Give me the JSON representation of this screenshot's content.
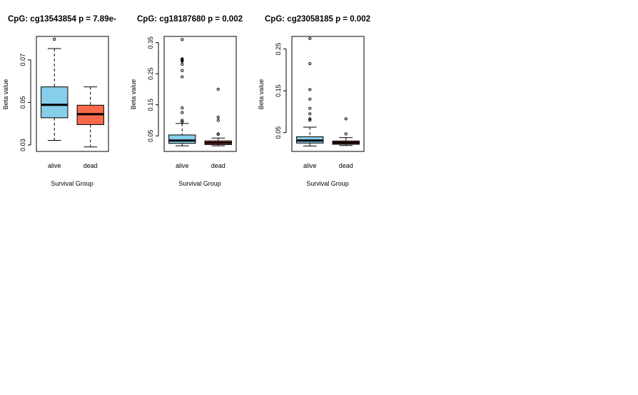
{
  "chart_data": [
    {
      "type": "boxplot",
      "title": "CpG: cg13543854 p = 7.89e-",
      "xlabel": "Survival Group",
      "ylabel": "Beta value",
      "categories": [
        "alive",
        "dead"
      ],
      "ylim": [
        0.027,
        0.081
      ],
      "yticks": [
        0.03,
        0.05,
        0.07
      ],
      "ytick_labels": [
        "0.03",
        "0.05",
        "0.07"
      ],
      "boxes": [
        {
          "name": "alive",
          "color": "#87ceeb",
          "whisker_low": 0.0322,
          "q1": 0.0428,
          "median": 0.0489,
          "q3": 0.0573,
          "whisker_high": 0.0753,
          "outliers": [
            0.0797
          ]
        },
        {
          "name": "dead",
          "color": "#fa6a4a",
          "whisker_low": 0.0291,
          "q1": 0.0396,
          "median": 0.0445,
          "q3": 0.0487,
          "whisker_high": 0.0573,
          "outliers": []
        }
      ]
    },
    {
      "type": "boxplot",
      "title": "CpG: cg18187680 p = 0.002",
      "xlabel": "Survival Group",
      "ylabel": "Beta value",
      "categories": [
        "alive",
        "dead"
      ],
      "ylim": [
        0.0,
        0.37
      ],
      "yticks": [
        0.05,
        0.15,
        0.25,
        0.35
      ],
      "ytick_labels": [
        "0.05",
        "0.15",
        "0.25",
        "0.35"
      ],
      "boxes": [
        {
          "name": "alive",
          "color": "#87ceeb",
          "whisker_low": 0.018,
          "q1": 0.026,
          "median": 0.035,
          "q3": 0.053,
          "whisker_high": 0.09,
          "outliers": [
            0.095,
            0.1,
            0.125,
            0.14,
            0.24,
            0.26,
            0.28,
            0.29,
            0.293,
            0.295,
            0.298,
            0.36
          ]
        },
        {
          "name": "dead",
          "color": "#fa6a4a",
          "whisker_low": 0.018,
          "q1": 0.022,
          "median": 0.028,
          "q3": 0.034,
          "whisker_high": 0.043,
          "outliers": [
            0.055,
            0.056,
            0.1,
            0.11,
            0.2
          ]
        }
      ]
    },
    {
      "type": "boxplot",
      "title": "CpG: cg23058185 p = 0.002",
      "xlabel": "Survival Group",
      "ylabel": "Beta value",
      "categories": [
        "alive",
        "dead"
      ],
      "ylim": [
        0.005,
        0.28
      ],
      "yticks": [
        0.05,
        0.15,
        0.25
      ],
      "ytick_labels": [
        "0.05",
        "0.15",
        "0.25"
      ],
      "boxes": [
        {
          "name": "alive",
          "color": "#87ceeb",
          "whisker_low": 0.018,
          "q1": 0.025,
          "median": 0.031,
          "q3": 0.04,
          "whisker_high": 0.063,
          "outliers": [
            0.08,
            0.083,
            0.095,
            0.108,
            0.13,
            0.153,
            0.215,
            0.275
          ]
        },
        {
          "name": "dead",
          "color": "#fa6a4a",
          "whisker_low": 0.019,
          "q1": 0.022,
          "median": 0.026,
          "q3": 0.03,
          "whisker_high": 0.038,
          "outliers": [
            0.047,
            0.083
          ]
        }
      ]
    }
  ]
}
